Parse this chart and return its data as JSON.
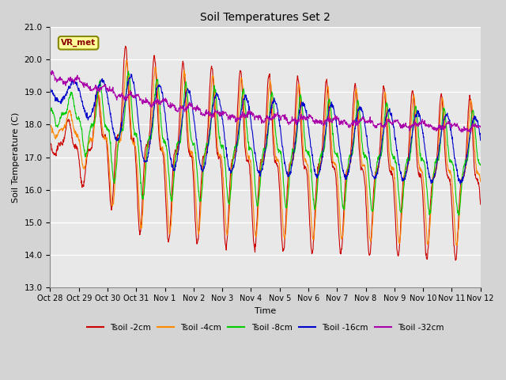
{
  "title": "Soil Temperatures Set 2",
  "xlabel": "Time",
  "ylabel": "Soil Temperature (C)",
  "ylim": [
    13.0,
    21.0
  ],
  "yticks": [
    13.0,
    14.0,
    15.0,
    16.0,
    17.0,
    18.0,
    19.0,
    20.0,
    21.0
  ],
  "xtick_labels": [
    "Oct 28",
    "Oct 29",
    "Oct 30",
    "Oct 31",
    "Nov 1",
    "Nov 2",
    "Nov 3",
    "Nov 4",
    "Nov 5",
    "Nov 6",
    "Nov 7",
    "Nov 8",
    "Nov 9",
    "Nov 10",
    "Nov 11",
    "Nov 12"
  ],
  "series_colors": [
    "#cc0000",
    "#ff8800",
    "#00cc00",
    "#0000cc",
    "#aa00aa"
  ],
  "series_labels": [
    "Tsoil -2cm",
    "Tsoil -4cm",
    "Tsoil -8cm",
    "Tsoil -16cm",
    "Tsoil -32cm"
  ],
  "plot_bg_color": "#e8e8e8",
  "fig_bg_color": "#d4d4d4",
  "grid_color": "#ffffff",
  "annotation_text": "VR_met",
  "annotation_bg": "#ffff99",
  "annotation_border": "#888800",
  "n_points": 1440
}
